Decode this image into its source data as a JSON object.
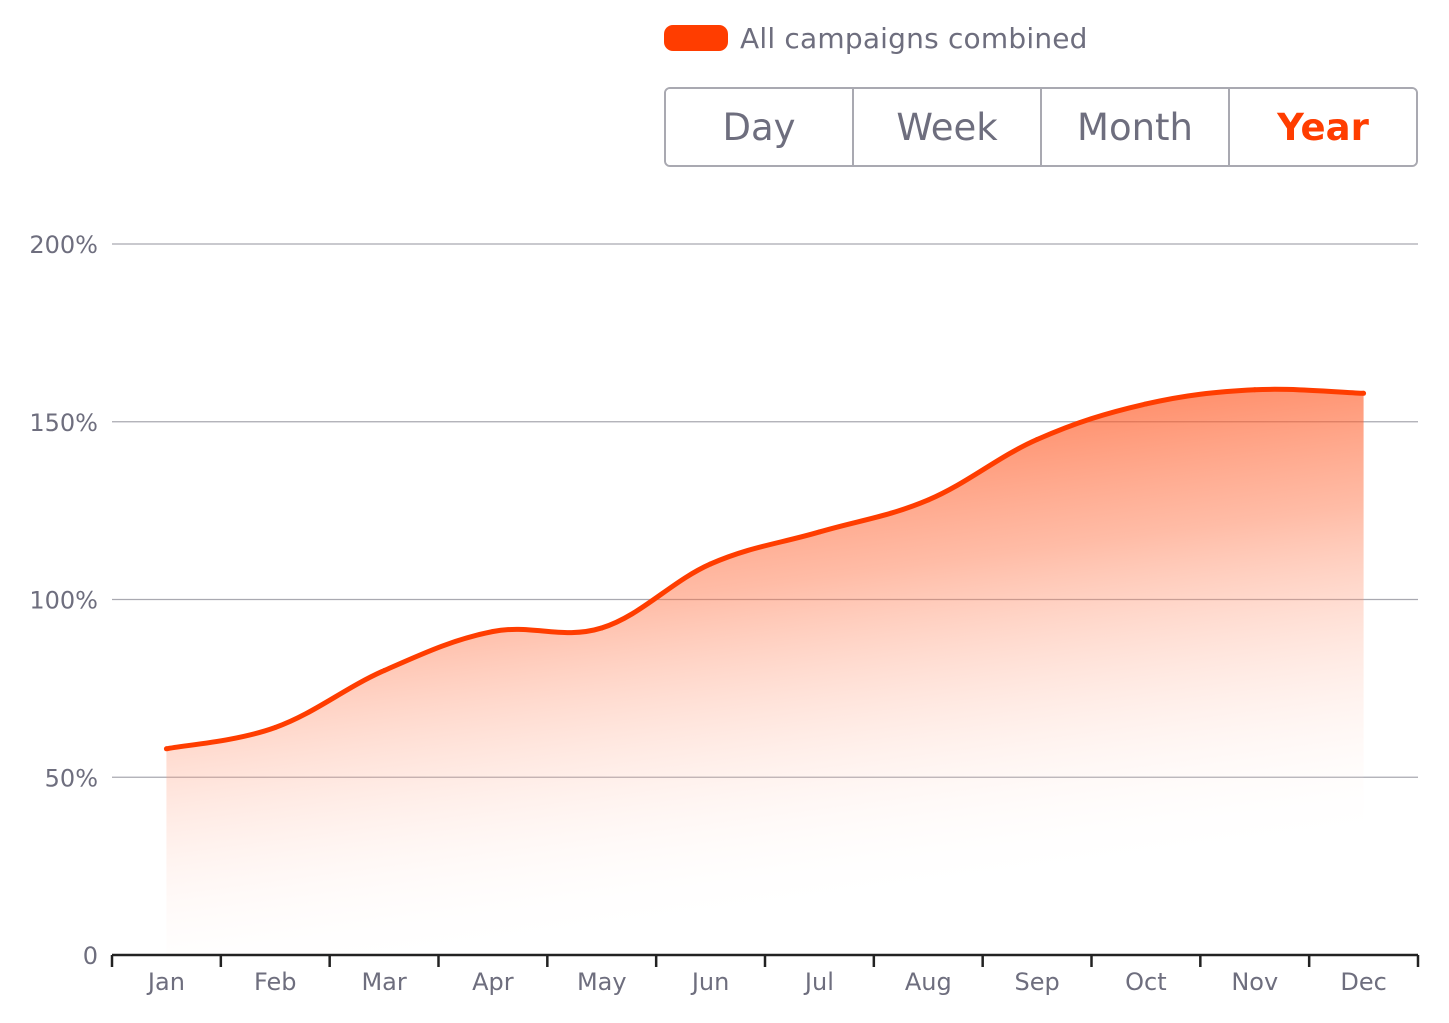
{
  "legend": {
    "label": "All campaigns combined",
    "color": "#ff3d00"
  },
  "range_toggle": {
    "options": [
      "Day",
      "Week",
      "Month",
      "Year"
    ],
    "selected": "Year"
  },
  "colors": {
    "accent": "#ff3d00",
    "grid": "#a9a9b1",
    "axis": "#222222",
    "text": "#6e6e7e"
  },
  "chart_data": {
    "type": "area",
    "title": "",
    "xlabel": "",
    "ylabel": "",
    "categories": [
      "Jan",
      "Feb",
      "Mar",
      "Apr",
      "May",
      "Jun",
      "Jul",
      "Aug",
      "Sep",
      "Oct",
      "Nov",
      "Dec"
    ],
    "ylim": [
      0,
      200
    ],
    "y_ticks": [
      0,
      50,
      100,
      150,
      200
    ],
    "y_tick_labels": [
      "0",
      "50%",
      "100%",
      "150%",
      "200%"
    ],
    "grid": true,
    "legend_position": "top-right",
    "series": [
      {
        "name": "All campaigns combined",
        "values": [
          58,
          64,
          80,
          91,
          92,
          110,
          119,
          128,
          145,
          155,
          159,
          158
        ]
      }
    ]
  }
}
